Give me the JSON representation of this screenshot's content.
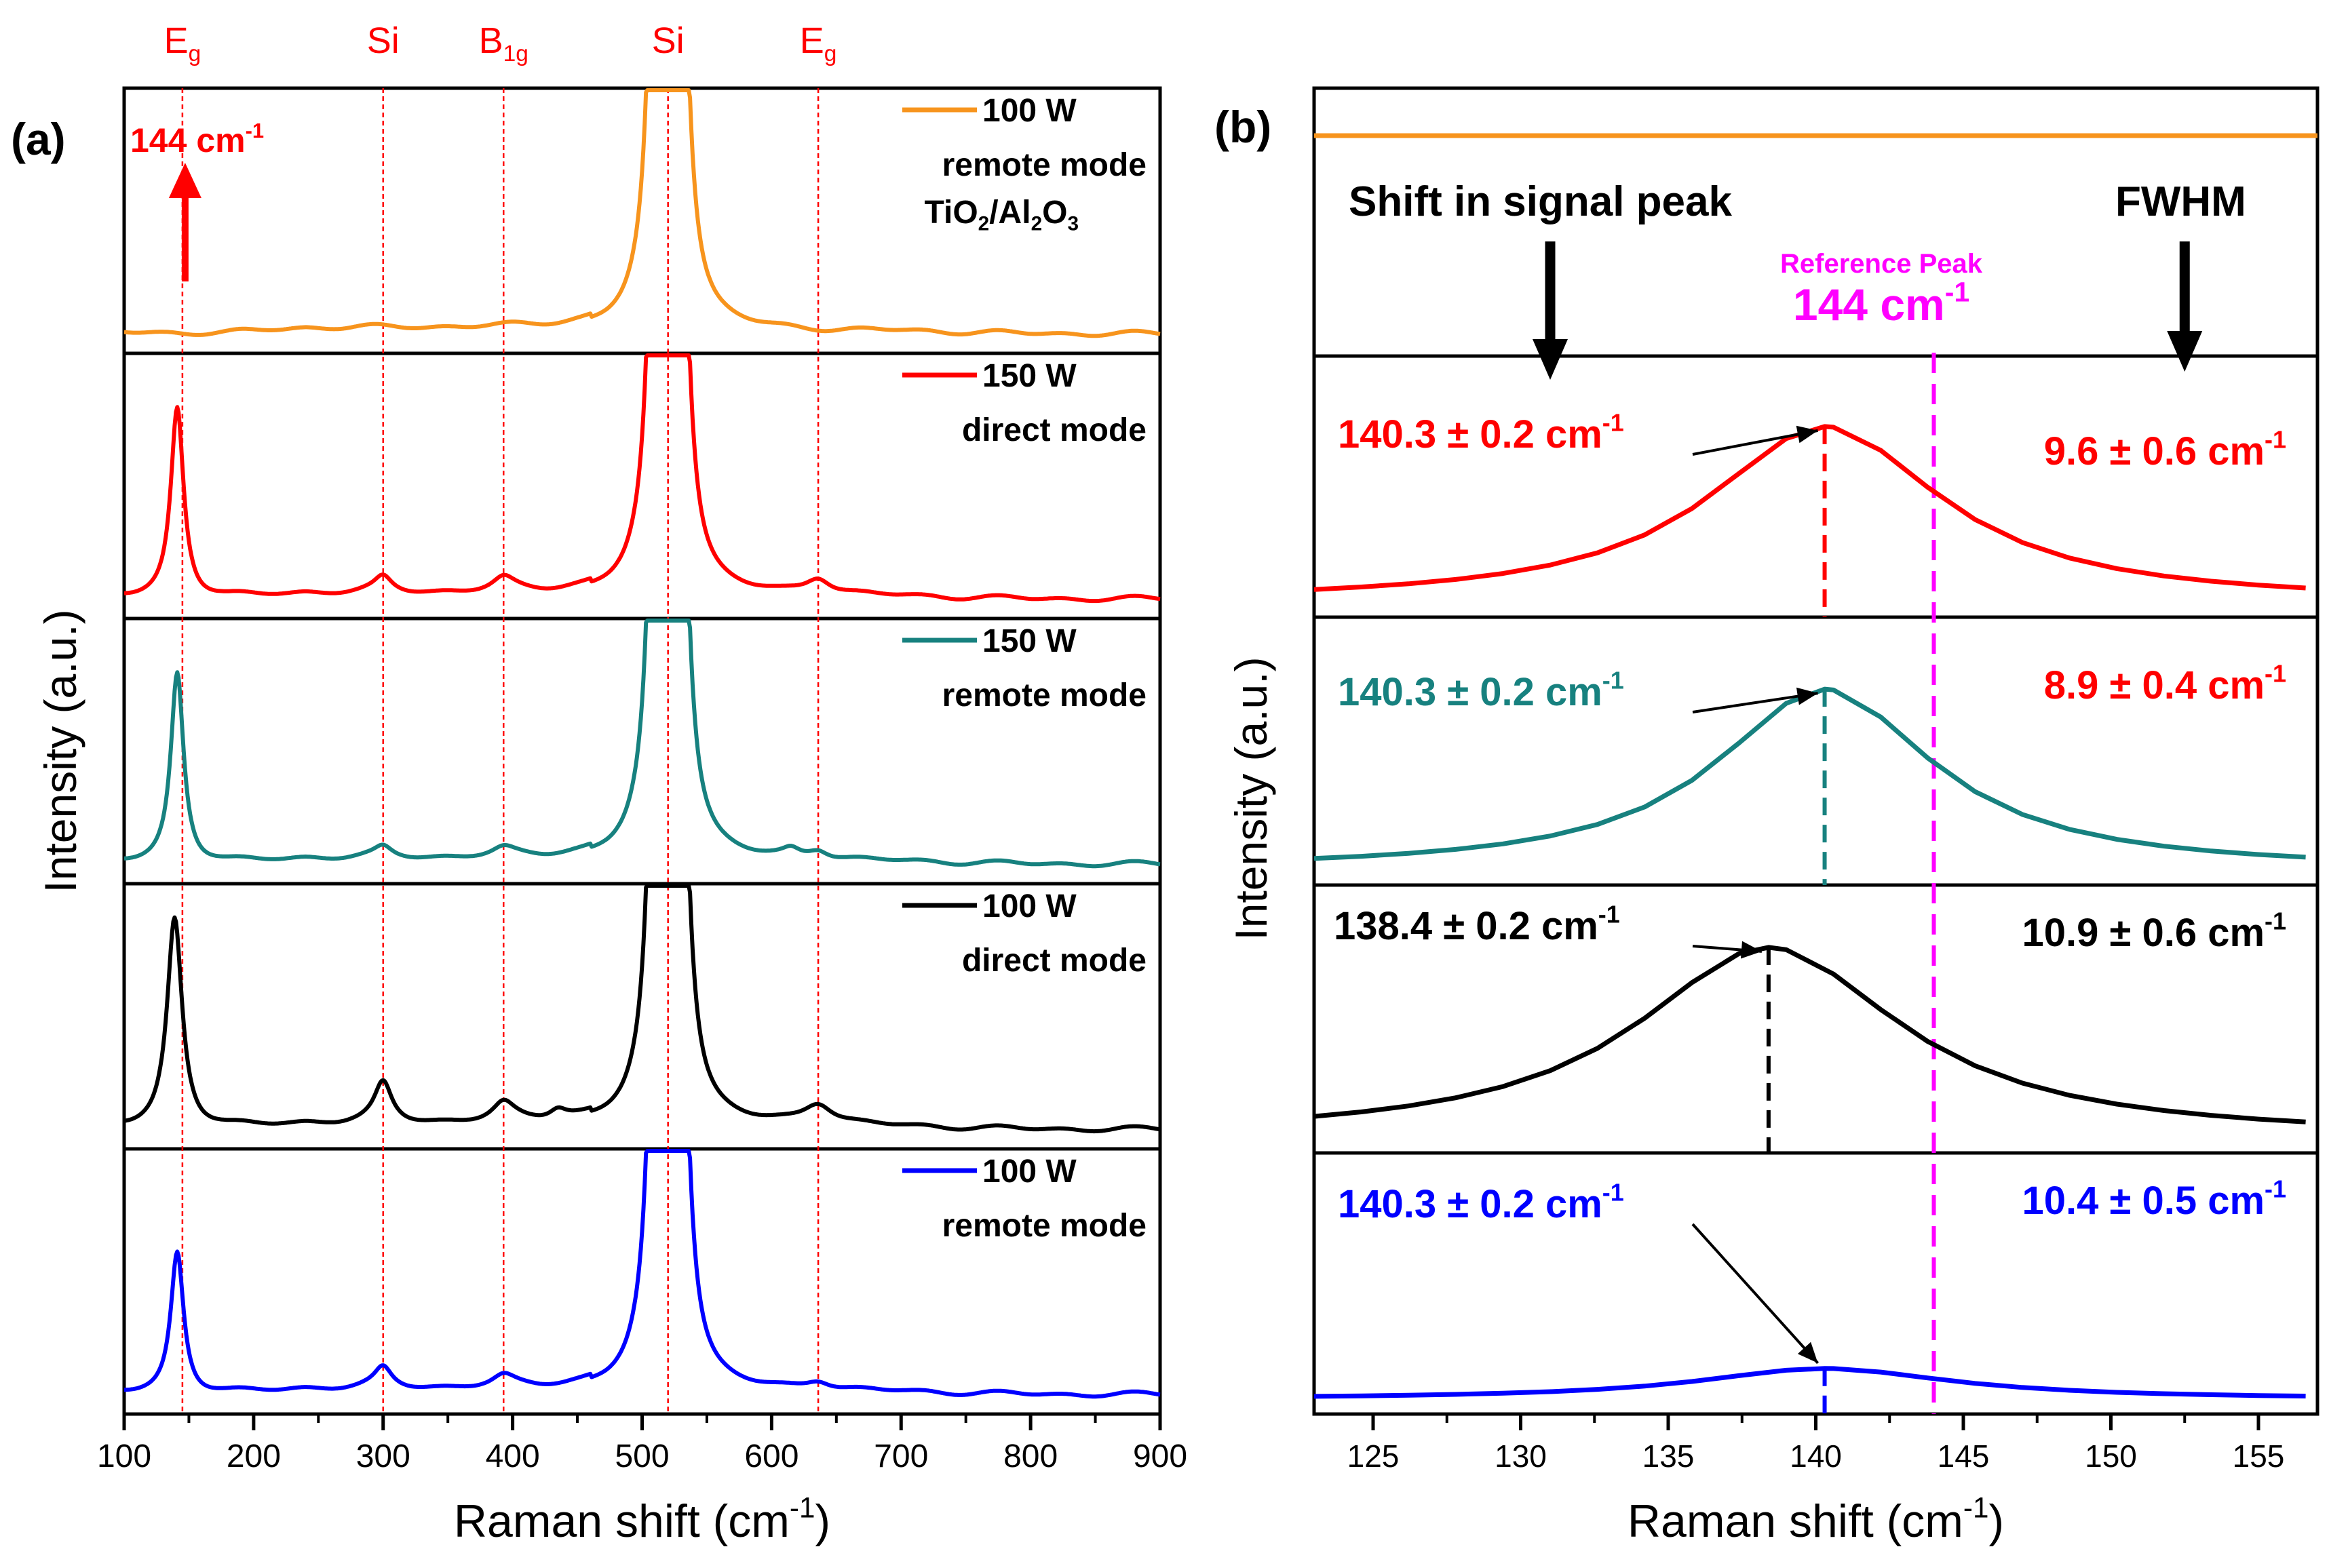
{
  "chart_data": [
    {
      "type": "line",
      "panel_label": "(a)",
      "xlabel": "Raman shift (cm",
      "xlabel_sup": "-1",
      "xlabel_end": ")",
      "ylabel": "Intensity (a.u.)",
      "xlim": [
        100,
        900
      ],
      "xticks": [
        "100",
        "200",
        "300",
        "400",
        "500",
        "600",
        "700",
        "800",
        "900"
      ],
      "reference_lines": [
        {
          "x": 145,
          "label": "E",
          "sub": "g"
        },
        {
          "x": 300,
          "label": "Si",
          "sub": ""
        },
        {
          "x": 393,
          "label": "B",
          "sub": "1g"
        },
        {
          "x": 520,
          "label": "Si",
          "sub": ""
        },
        {
          "x": 636,
          "label": "E",
          "sub": "g"
        }
      ],
      "annotation": {
        "text": "144 cm",
        "sup": "-1",
        "x": 145
      },
      "series": [
        {
          "name": "100 W remote mode TiO2/Al2O3",
          "legend": [
            "100 W",
            "remote mode",
            "TiO",
            "2",
            "/Al",
            "2",
            "O",
            "3"
          ],
          "color": "#F7941D",
          "peaks": []
        },
        {
          "name": "150 W direct mode",
          "legend": [
            "150 W",
            "direct mode"
          ],
          "color": "#FF0000",
          "peaks": [
            [
              141,
              0.78,
              6
            ],
            [
              300,
              0.06,
              8
            ],
            [
              393,
              0.05,
              10
            ],
            [
              636,
              0.07,
              12
            ]
          ]
        },
        {
          "name": "150 W remote mode",
          "legend": [
            "150 W",
            "remote mode"
          ],
          "color": "#17817F",
          "peaks": [
            [
              141,
              0.78,
              6
            ],
            [
              300,
              0.04,
              8
            ],
            [
              393,
              0.03,
              10
            ],
            [
              615,
              0.03,
              8
            ],
            [
              636,
              0.04,
              10
            ]
          ]
        },
        {
          "name": "100 W direct mode",
          "legend": [
            "100 W",
            "direct mode"
          ],
          "color": "#000000",
          "peaks": [
            [
              139,
              0.86,
              7
            ],
            [
              300,
              0.16,
              8
            ],
            [
              393,
              0.07,
              10
            ],
            [
              435,
              0.04,
              8
            ],
            [
              636,
              0.09,
              14
            ]
          ]
        },
        {
          "name": "100 W remote mode",
          "legend": [
            "100 W",
            "remote mode"
          ],
          "color": "#0000FF",
          "peaks": [
            [
              141,
              0.58,
              6
            ],
            [
              300,
              0.08,
              8
            ],
            [
              393,
              0.04,
              10
            ],
            [
              636,
              0.04,
              12
            ]
          ]
        }
      ]
    },
    {
      "type": "line",
      "panel_label": "(b)",
      "xlabel": "Raman shift (cm",
      "xlabel_sup": "-1",
      "xlabel_end": ")",
      "ylabel": "Intensity (a.u.)",
      "xlim": [
        123,
        157
      ],
      "xticks": [
        "125",
        "130",
        "135",
        "140",
        "145",
        "150",
        "155"
      ],
      "top_labels": {
        "shift": "Shift in signal peak",
        "fwhm": "FWHM",
        "ref_title": "Reference Peak",
        "ref_value": "144  cm",
        "ref_sup": "-1"
      },
      "reference_peak_x": 144,
      "series": [
        {
          "name": "100 W remote mode TiO2/Al2O3",
          "color": "#F7941D",
          "flat": true
        },
        {
          "name": "150 W direct mode",
          "color": "#FF0000",
          "peak_x": 140.3,
          "peak_y": 0.78,
          "fwhm": 9.6,
          "peak_label": "140.3 ± 0.2 cm",
          "fwhm_label": "9.6 ± 0.6 cm",
          "peak_label_color": "#FF0000",
          "fwhm_label_color": "#FF0000"
        },
        {
          "name": "150 W remote mode",
          "color": "#17817F",
          "peak_x": 140.3,
          "peak_y": 0.78,
          "fwhm": 8.9,
          "peak_label": "140.3 ± 0.2 cm",
          "fwhm_label": "8.9 ± 0.4 cm",
          "peak_label_color": "#17817F",
          "fwhm_label_color": "#FF0000"
        },
        {
          "name": "100 W direct mode",
          "color": "#000000",
          "peak_x": 138.4,
          "peak_y": 0.82,
          "fwhm": 10.9,
          "peak_label": "138.4 ± 0.2 cm",
          "fwhm_label": "10.9 ± 0.6 cm",
          "peak_label_color": "#000000",
          "fwhm_label_color": "#000000"
        },
        {
          "name": "100 W remote mode",
          "color": "#0000FF",
          "peak_x": 140.3,
          "peak_y": 0.16,
          "fwhm": 10.4,
          "peak_label": "140.3 ± 0.2 cm",
          "fwhm_label": "10.4 ± 0.5 cm",
          "peak_label_color": "#0000FF",
          "fwhm_label_color": "#0000FF"
        }
      ],
      "unit_sup": "-1"
    }
  ]
}
